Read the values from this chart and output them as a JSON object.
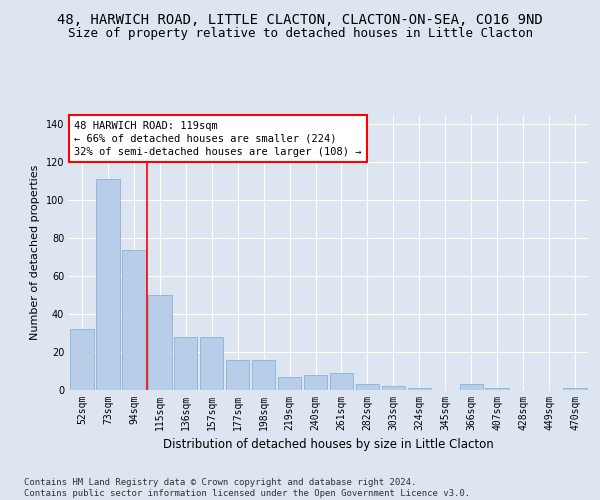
{
  "title1": "48, HARWICH ROAD, LITTLE CLACTON, CLACTON-ON-SEA, CO16 9ND",
  "title2": "Size of property relative to detached houses in Little Clacton",
  "xlabel": "Distribution of detached houses by size in Little Clacton",
  "ylabel": "Number of detached properties",
  "categories": [
    "52sqm",
    "73sqm",
    "94sqm",
    "115sqm",
    "136sqm",
    "157sqm",
    "177sqm",
    "198sqm",
    "219sqm",
    "240sqm",
    "261sqm",
    "282sqm",
    "303sqm",
    "324sqm",
    "345sqm",
    "366sqm",
    "407sqm",
    "428sqm",
    "449sqm",
    "470sqm"
  ],
  "values": [
    32,
    111,
    74,
    50,
    28,
    28,
    16,
    16,
    7,
    8,
    9,
    3,
    2,
    1,
    0,
    3,
    1,
    0,
    0,
    1
  ],
  "bar_color": "#b8cde8",
  "bar_edgecolor": "#7aacd4",
  "vline_x_index": 2.5,
  "vline_color": "red",
  "annotation_text": "48 HARWICH ROAD: 119sqm\n← 66% of detached houses are smaller (224)\n32% of semi-detached houses are larger (108) →",
  "annotation_box_color": "white",
  "annotation_box_edgecolor": "red",
  "ylim": [
    0,
    145
  ],
  "yticks": [
    0,
    20,
    40,
    60,
    80,
    100,
    120,
    140
  ],
  "background_color": "#dde5f0",
  "plot_background_color": "#dde5f0",
  "footer_text": "Contains HM Land Registry data © Crown copyright and database right 2024.\nContains public sector information licensed under the Open Government Licence v3.0.",
  "title1_fontsize": 10,
  "title2_fontsize": 9,
  "xlabel_fontsize": 8.5,
  "ylabel_fontsize": 8,
  "tick_fontsize": 7,
  "annotation_fontsize": 7.5,
  "footer_fontsize": 6.5
}
